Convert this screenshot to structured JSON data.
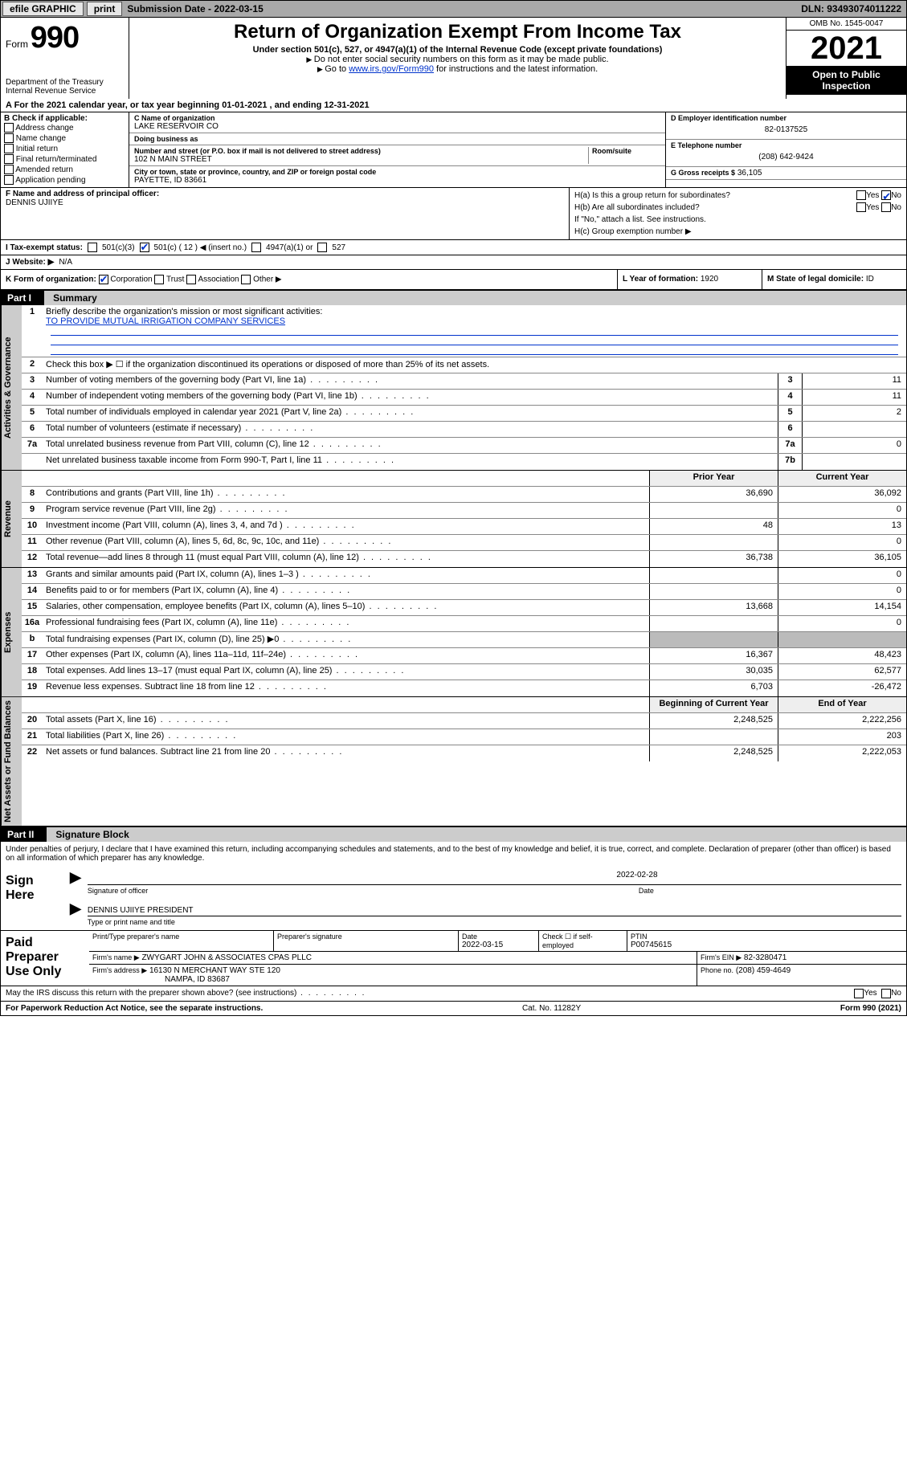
{
  "topbar": {
    "efile_label": "efile GRAPHIC",
    "print_label": "print",
    "submission_label": "Submission Date - 2022-03-15",
    "dln": "DLN: 93493074011222"
  },
  "header": {
    "form_prefix": "Form",
    "form_number": "990",
    "dept": "Department of the Treasury",
    "irs": "Internal Revenue Service",
    "title": "Return of Organization Exempt From Income Tax",
    "sub1": "Under section 501(c), 527, or 4947(a)(1) of the Internal Revenue Code (except private foundations)",
    "sub2": "Do not enter social security numbers on this form as it may be made public.",
    "sub3_pre": "Go to ",
    "sub3_link": "www.irs.gov/Form990",
    "sub3_post": " for instructions and the latest information.",
    "omb": "OMB No. 1545-0047",
    "year": "2021",
    "open_public": "Open to Public Inspection"
  },
  "row_a": {
    "text": "A For the 2021 calendar year, or tax year beginning 01-01-2021    , and ending 12-31-2021"
  },
  "col_b": {
    "heading": "B Check if applicable:",
    "items": [
      "Address change",
      "Name change",
      "Initial return",
      "Final return/terminated",
      "Amended return",
      "Application pending"
    ]
  },
  "col_c": {
    "name_lbl": "C Name of organization",
    "name_val": "LAKE RESERVOIR CO",
    "dba_lbl": "Doing business as",
    "dba_val": "",
    "addr_lbl": "Number and street (or P.O. box if mail is not delivered to street address)",
    "room_lbl": "Room/suite",
    "addr_val": "102 N MAIN STREET",
    "city_lbl": "City or town, state or province, country, and ZIP or foreign postal code",
    "city_val": "PAYETTE, ID  83661"
  },
  "col_de": {
    "ein_lbl": "D Employer identification number",
    "ein_val": "82-0137525",
    "tel_lbl": "E Telephone number",
    "tel_val": "(208) 642-9424",
    "gross_lbl": "G Gross receipts $",
    "gross_val": "36,105"
  },
  "block_f": {
    "lbl": "F Name and address of principal officer:",
    "val": "DENNIS UJIIYE"
  },
  "block_h": {
    "ha": "H(a)  Is this a group return for subordinates?",
    "hb": "H(b)  Are all subordinates included?",
    "hb_note": "If \"No,\" attach a list. See instructions.",
    "hc": "H(c)  Group exemption number ▶",
    "yes": "Yes",
    "no": "No"
  },
  "line_i": {
    "label": "I    Tax-exempt status:",
    "opts": [
      "501(c)(3)",
      "501(c) ( 12 ) ◀ (insert no.)",
      "4947(a)(1) or",
      "527"
    ]
  },
  "line_j": {
    "label": "J    Website: ▶",
    "val": "N/A"
  },
  "line_k": {
    "label": "K Form of organization:",
    "opts": [
      "Corporation",
      "Trust",
      "Association",
      "Other ▶"
    ]
  },
  "line_l": {
    "label": "L Year of formation:",
    "val": "1920"
  },
  "line_m": {
    "label": "M State of legal domicile:",
    "val": "ID"
  },
  "part1": {
    "header_num": "Part I",
    "header_title": "Summary",
    "governance_label": "Activities & Governance",
    "revenue_label": "Revenue",
    "expenses_label": "Expenses",
    "netassets_label": "Net Assets or Fund Balances",
    "line1_lbl": "Briefly describe the organization's mission or most significant activities:",
    "line1_val": "TO PROVIDE MUTUAL IRRIGATION COMPANY SERVICES",
    "line2": "Check this box ▶ ☐ if the organization discontinued its operations or disposed of more than 25% of its net assets.",
    "rows_gov": [
      {
        "n": "3",
        "d": "Number of voting members of the governing body (Part VI, line 1a)",
        "box": "3",
        "v": "11"
      },
      {
        "n": "4",
        "d": "Number of independent voting members of the governing body (Part VI, line 1b)",
        "box": "4",
        "v": "11"
      },
      {
        "n": "5",
        "d": "Total number of individuals employed in calendar year 2021 (Part V, line 2a)",
        "box": "5",
        "v": "2"
      },
      {
        "n": "6",
        "d": "Total number of volunteers (estimate if necessary)",
        "box": "6",
        "v": ""
      },
      {
        "n": "7a",
        "d": "Total unrelated business revenue from Part VIII, column (C), line 12",
        "box": "7a",
        "v": "0"
      },
      {
        "n": "",
        "d": "Net unrelated business taxable income from Form 990-T, Part I, line 11",
        "box": "7b",
        "v": ""
      }
    ],
    "col_headers": {
      "py": "Prior Year",
      "cy": "Current Year",
      "boy": "Beginning of Current Year",
      "eoy": "End of Year"
    },
    "rows_rev": [
      {
        "n": "8",
        "d": "Contributions and grants (Part VIII, line 1h)",
        "py": "36,690",
        "cy": "36,092"
      },
      {
        "n": "9",
        "d": "Program service revenue (Part VIII, line 2g)",
        "py": "",
        "cy": "0"
      },
      {
        "n": "10",
        "d": "Investment income (Part VIII, column (A), lines 3, 4, and 7d )",
        "py": "48",
        "cy": "13"
      },
      {
        "n": "11",
        "d": "Other revenue (Part VIII, column (A), lines 5, 6d, 8c, 9c, 10c, and 11e)",
        "py": "",
        "cy": "0"
      },
      {
        "n": "12",
        "d": "Total revenue—add lines 8 through 11 (must equal Part VIII, column (A), line 12)",
        "py": "36,738",
        "cy": "36,105"
      }
    ],
    "rows_exp": [
      {
        "n": "13",
        "d": "Grants and similar amounts paid (Part IX, column (A), lines 1–3 )",
        "py": "",
        "cy": "0"
      },
      {
        "n": "14",
        "d": "Benefits paid to or for members (Part IX, column (A), line 4)",
        "py": "",
        "cy": "0"
      },
      {
        "n": "15",
        "d": "Salaries, other compensation, employee benefits (Part IX, column (A), lines 5–10)",
        "py": "13,668",
        "cy": "14,154"
      },
      {
        "n": "16a",
        "d": "Professional fundraising fees (Part IX, column (A), line 11e)",
        "py": "",
        "cy": "0"
      },
      {
        "n": "b",
        "d": "Total fundraising expenses (Part IX, column (D), line 25) ▶0",
        "py": "grey",
        "cy": "grey"
      },
      {
        "n": "17",
        "d": "Other expenses (Part IX, column (A), lines 11a–11d, 11f–24e)",
        "py": "16,367",
        "cy": "48,423"
      },
      {
        "n": "18",
        "d": "Total expenses. Add lines 13–17 (must equal Part IX, column (A), line 25)",
        "py": "30,035",
        "cy": "62,577"
      },
      {
        "n": "19",
        "d": "Revenue less expenses. Subtract line 18 from line 12",
        "py": "6,703",
        "cy": "-26,472"
      }
    ],
    "rows_net": [
      {
        "n": "20",
        "d": "Total assets (Part X, line 16)",
        "py": "2,248,525",
        "cy": "2,222,256"
      },
      {
        "n": "21",
        "d": "Total liabilities (Part X, line 26)",
        "py": "",
        "cy": "203"
      },
      {
        "n": "22",
        "d": "Net assets or fund balances. Subtract line 21 from line 20",
        "py": "2,248,525",
        "cy": "2,222,053"
      }
    ]
  },
  "part2": {
    "header_num": "Part II",
    "header_title": "Signature Block",
    "penalty": "Under penalties of perjury, I declare that I have examined this return, including accompanying schedules and statements, and to the best of my knowledge and belief, it is true, correct, and complete. Declaration of preparer (other than officer) is based on all information of which preparer has any knowledge.",
    "sign_here": "Sign Here",
    "sig_officer_lbl": "Signature of officer",
    "date_lbl": "Date",
    "sig_date": "2022-02-28",
    "officer_name": "DENNIS UJIIYE PRESIDENT",
    "officer_sub": "Type or print name and title"
  },
  "prep": {
    "title": "Paid Preparer Use Only",
    "r1": {
      "c1": "Print/Type preparer's name",
      "c2": "Preparer's signature",
      "c3": "Date",
      "c3v": "2022-03-15",
      "c4": "Check ☐ if self-employed",
      "c5": "PTIN",
      "c5v": "P00745615"
    },
    "r2": {
      "lbl": "Firm's name    ▶",
      "val": "ZWYGART JOHN & ASSOCIATES CPAS PLLC",
      "ein_lbl": "Firm's EIN ▶",
      "ein_val": "82-3280471"
    },
    "r3": {
      "lbl": "Firm's address ▶",
      "val": "16130 N MERCHANT WAY STE 120",
      "city": "NAMPA, ID  83687",
      "ph_lbl": "Phone no.",
      "ph_val": "(208) 459-4649"
    }
  },
  "bottom": {
    "discuss": "May the IRS discuss this return with the preparer shown above? (see instructions)",
    "yes": "Yes",
    "no": "No"
  },
  "footer": {
    "left": "For Paperwork Reduction Act Notice, see the separate instructions.",
    "mid": "Cat. No. 11282Y",
    "right": "Form 990 (2021)"
  }
}
